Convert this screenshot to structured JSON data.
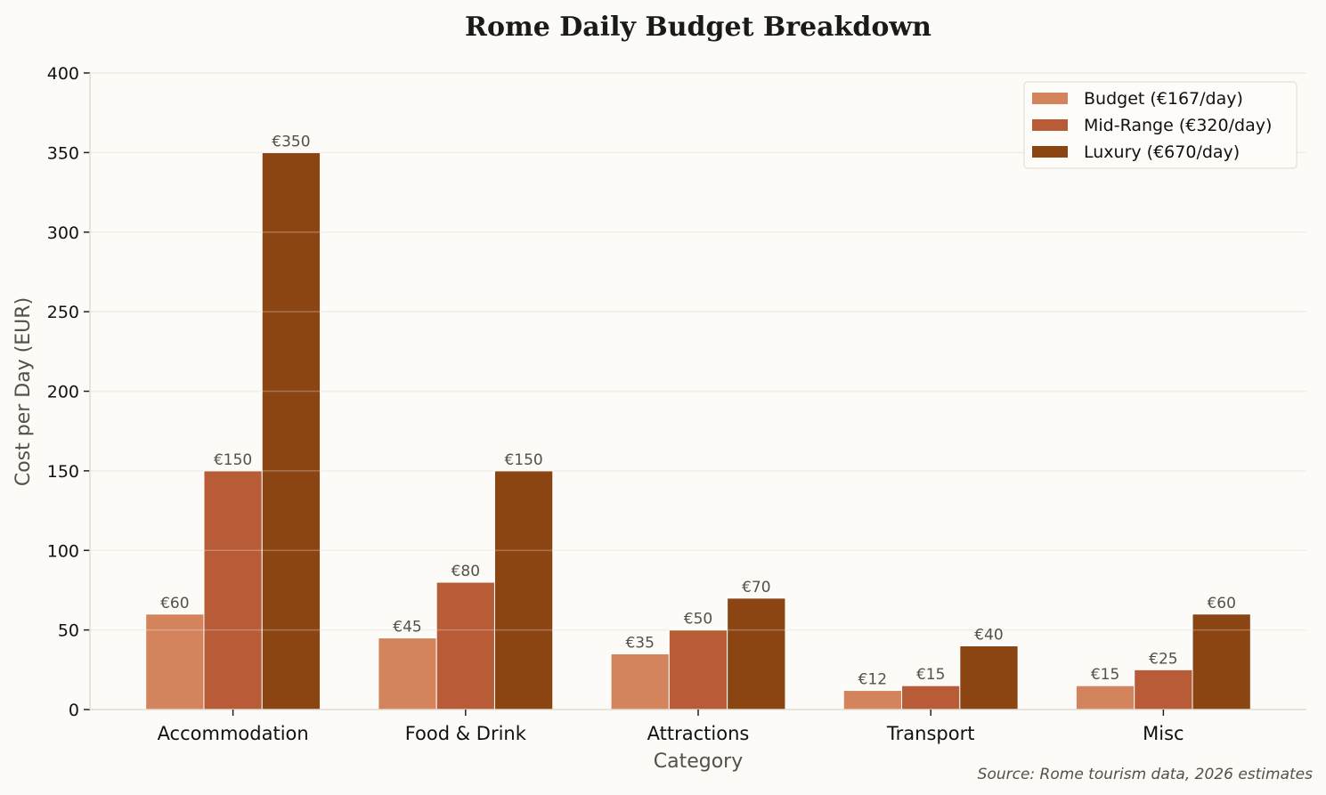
{
  "chart_data": {
    "type": "bar",
    "title": "Rome Daily Budget Breakdown",
    "xlabel": "Category",
    "ylabel": "Cost per Day (EUR)",
    "categories": [
      "Accommodation",
      "Food & Drink",
      "Attractions",
      "Transport",
      "Misc"
    ],
    "series": [
      {
        "name": "Budget (€167/day)",
        "values": [
          60,
          45,
          35,
          12,
          15
        ],
        "color": "#d4845c"
      },
      {
        "name": "Mid-Range (€320/day)",
        "values": [
          150,
          80,
          50,
          15,
          25
        ],
        "color": "#b85c38"
      },
      {
        "name": "Luxury (€670/day)",
        "values": [
          350,
          150,
          70,
          40,
          60
        ],
        "color": "#8b4513"
      }
    ],
    "data_labels": [
      [
        "€60",
        "€45",
        "€35",
        "€12",
        "€15"
      ],
      [
        "€150",
        "€80",
        "€50",
        "€15",
        "€25"
      ],
      [
        "€350",
        "€150",
        "€70",
        "€40",
        "€60"
      ]
    ],
    "ylim": [
      0,
      400
    ],
    "yticks": [
      "0",
      "50",
      "100",
      "150",
      "200",
      "250",
      "300",
      "350",
      "400"
    ],
    "grid": true,
    "legend_placement": "top-right",
    "annotation": "Source: Rome tourism data, 2026 estimates"
  }
}
